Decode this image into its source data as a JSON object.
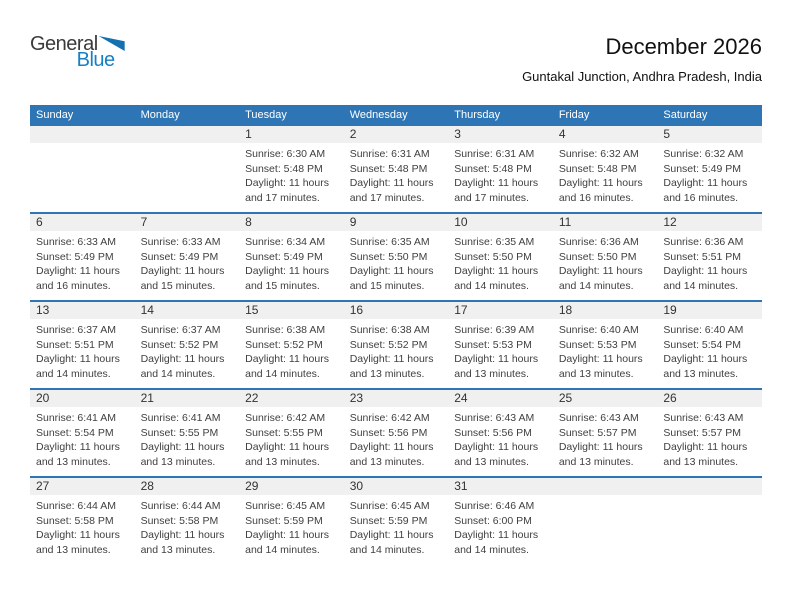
{
  "logo": {
    "text_general": "General",
    "text_blue": "Blue"
  },
  "header": {
    "title": "December 2026",
    "subtitle": "Guntakal Junction, Andhra Pradesh, India"
  },
  "colors": {
    "header_bar_blue": "#2E75B6",
    "week_divider_blue": "#2E75B6",
    "date_band_gray": "#F0F0F0",
    "logo_blue": "#1780C4",
    "weekday_text": "#FFFFFF"
  },
  "calendar": {
    "weekdays": [
      "Sunday",
      "Monday",
      "Tuesday",
      "Wednesday",
      "Thursday",
      "Friday",
      "Saturday"
    ],
    "weeks": [
      [
        null,
        null,
        {
          "day": "1",
          "sunrise": "Sunrise: 6:30 AM",
          "sunset": "Sunset: 5:48 PM",
          "daylight": "Daylight: 11 hours and 17 minutes."
        },
        {
          "day": "2",
          "sunrise": "Sunrise: 6:31 AM",
          "sunset": "Sunset: 5:48 PM",
          "daylight": "Daylight: 11 hours and 17 minutes."
        },
        {
          "day": "3",
          "sunrise": "Sunrise: 6:31 AM",
          "sunset": "Sunset: 5:48 PM",
          "daylight": "Daylight: 11 hours and 17 minutes."
        },
        {
          "day": "4",
          "sunrise": "Sunrise: 6:32 AM",
          "sunset": "Sunset: 5:48 PM",
          "daylight": "Daylight: 11 hours and 16 minutes."
        },
        {
          "day": "5",
          "sunrise": "Sunrise: 6:32 AM",
          "sunset": "Sunset: 5:49 PM",
          "daylight": "Daylight: 11 hours and 16 minutes."
        }
      ],
      [
        {
          "day": "6",
          "sunrise": "Sunrise: 6:33 AM",
          "sunset": "Sunset: 5:49 PM",
          "daylight": "Daylight: 11 hours and 16 minutes."
        },
        {
          "day": "7",
          "sunrise": "Sunrise: 6:33 AM",
          "sunset": "Sunset: 5:49 PM",
          "daylight": "Daylight: 11 hours and 15 minutes."
        },
        {
          "day": "8",
          "sunrise": "Sunrise: 6:34 AM",
          "sunset": "Sunset: 5:49 PM",
          "daylight": "Daylight: 11 hours and 15 minutes."
        },
        {
          "day": "9",
          "sunrise": "Sunrise: 6:35 AM",
          "sunset": "Sunset: 5:50 PM",
          "daylight": "Daylight: 11 hours and 15 minutes."
        },
        {
          "day": "10",
          "sunrise": "Sunrise: 6:35 AM",
          "sunset": "Sunset: 5:50 PM",
          "daylight": "Daylight: 11 hours and 14 minutes."
        },
        {
          "day": "11",
          "sunrise": "Sunrise: 6:36 AM",
          "sunset": "Sunset: 5:50 PM",
          "daylight": "Daylight: 11 hours and 14 minutes."
        },
        {
          "day": "12",
          "sunrise": "Sunrise: 6:36 AM",
          "sunset": "Sunset: 5:51 PM",
          "daylight": "Daylight: 11 hours and 14 minutes."
        }
      ],
      [
        {
          "day": "13",
          "sunrise": "Sunrise: 6:37 AM",
          "sunset": "Sunset: 5:51 PM",
          "daylight": "Daylight: 11 hours and 14 minutes."
        },
        {
          "day": "14",
          "sunrise": "Sunrise: 6:37 AM",
          "sunset": "Sunset: 5:52 PM",
          "daylight": "Daylight: 11 hours and 14 minutes."
        },
        {
          "day": "15",
          "sunrise": "Sunrise: 6:38 AM",
          "sunset": "Sunset: 5:52 PM",
          "daylight": "Daylight: 11 hours and 14 minutes."
        },
        {
          "day": "16",
          "sunrise": "Sunrise: 6:38 AM",
          "sunset": "Sunset: 5:52 PM",
          "daylight": "Daylight: 11 hours and 13 minutes."
        },
        {
          "day": "17",
          "sunrise": "Sunrise: 6:39 AM",
          "sunset": "Sunset: 5:53 PM",
          "daylight": "Daylight: 11 hours and 13 minutes."
        },
        {
          "day": "18",
          "sunrise": "Sunrise: 6:40 AM",
          "sunset": "Sunset: 5:53 PM",
          "daylight": "Daylight: 11 hours and 13 minutes."
        },
        {
          "day": "19",
          "sunrise": "Sunrise: 6:40 AM",
          "sunset": "Sunset: 5:54 PM",
          "daylight": "Daylight: 11 hours and 13 minutes."
        }
      ],
      [
        {
          "day": "20",
          "sunrise": "Sunrise: 6:41 AM",
          "sunset": "Sunset: 5:54 PM",
          "daylight": "Daylight: 11 hours and 13 minutes."
        },
        {
          "day": "21",
          "sunrise": "Sunrise: 6:41 AM",
          "sunset": "Sunset: 5:55 PM",
          "daylight": "Daylight: 11 hours and 13 minutes."
        },
        {
          "day": "22",
          "sunrise": "Sunrise: 6:42 AM",
          "sunset": "Sunset: 5:55 PM",
          "daylight": "Daylight: 11 hours and 13 minutes."
        },
        {
          "day": "23",
          "sunrise": "Sunrise: 6:42 AM",
          "sunset": "Sunset: 5:56 PM",
          "daylight": "Daylight: 11 hours and 13 minutes."
        },
        {
          "day": "24",
          "sunrise": "Sunrise: 6:43 AM",
          "sunset": "Sunset: 5:56 PM",
          "daylight": "Daylight: 11 hours and 13 minutes."
        },
        {
          "day": "25",
          "sunrise": "Sunrise: 6:43 AM",
          "sunset": "Sunset: 5:57 PM",
          "daylight": "Daylight: 11 hours and 13 minutes."
        },
        {
          "day": "26",
          "sunrise": "Sunrise: 6:43 AM",
          "sunset": "Sunset: 5:57 PM",
          "daylight": "Daylight: 11 hours and 13 minutes."
        }
      ],
      [
        {
          "day": "27",
          "sunrise": "Sunrise: 6:44 AM",
          "sunset": "Sunset: 5:58 PM",
          "daylight": "Daylight: 11 hours and 13 minutes."
        },
        {
          "day": "28",
          "sunrise": "Sunrise: 6:44 AM",
          "sunset": "Sunset: 5:58 PM",
          "daylight": "Daylight: 11 hours and 13 minutes."
        },
        {
          "day": "29",
          "sunrise": "Sunrise: 6:45 AM",
          "sunset": "Sunset: 5:59 PM",
          "daylight": "Daylight: 11 hours and 14 minutes."
        },
        {
          "day": "30",
          "sunrise": "Sunrise: 6:45 AM",
          "sunset": "Sunset: 5:59 PM",
          "daylight": "Daylight: 11 hours and 14 minutes."
        },
        {
          "day": "31",
          "sunrise": "Sunrise: 6:46 AM",
          "sunset": "Sunset: 6:00 PM",
          "daylight": "Daylight: 11 hours and 14 minutes."
        },
        null,
        null
      ]
    ]
  }
}
